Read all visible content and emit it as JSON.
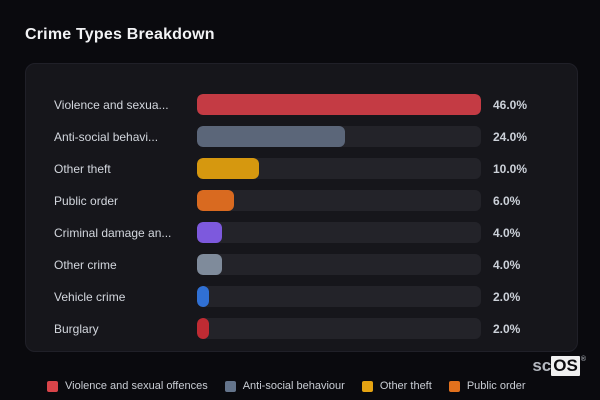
{
  "page_title": "Crime Types Breakdown",
  "chart_data": {
    "type": "bar",
    "orientation": "horizontal",
    "title": "Crime Types Breakdown",
    "value_unit": "%",
    "axis_max_scaling": "bars scaled relative to max value (46%)",
    "max_value": 46,
    "grid": false,
    "legend_position": "bottom",
    "categories": [
      "Violence and sexua...",
      "Anti-social behavi...",
      "Other theft",
      "Public order",
      "Criminal damage an...",
      "Other crime",
      "Vehicle crime",
      "Burglary"
    ],
    "values": [
      46.0,
      24.0,
      10.0,
      6.0,
      4.0,
      4.0,
      2.0,
      2.0
    ],
    "rows": [
      {
        "label": "Violence and sexua...",
        "value": 46.0,
        "value_label": "46.0%",
        "color": "#c43b44"
      },
      {
        "label": "Anti-social behavi...",
        "value": 24.0,
        "value_label": "24.0%",
        "color": "#5b6679"
      },
      {
        "label": "Other theft",
        "value": 10.0,
        "value_label": "10.0%",
        "color": "#d6980f"
      },
      {
        "label": "Public order",
        "value": 6.0,
        "value_label": "6.0%",
        "color": "#d96a20"
      },
      {
        "label": "Criminal damage an...",
        "value": 4.0,
        "value_label": "4.0%",
        "color": "#7d59dd"
      },
      {
        "label": "Other crime",
        "value": 4.0,
        "value_label": "4.0%",
        "color": "#7f8b9b"
      },
      {
        "label": "Vehicle crime",
        "value": 2.0,
        "value_label": "2.0%",
        "color": "#3070d4"
      },
      {
        "label": "Burglary",
        "value": 2.0,
        "value_label": "2.0%",
        "color": "#bf2b33"
      }
    ],
    "legend": [
      {
        "label": "Violence and sexual offences",
        "color": "#d94449"
      },
      {
        "label": "Anti-social behaviour",
        "color": "#64748b"
      },
      {
        "label": "Other theft",
        "color": "#e5a312"
      },
      {
        "label": "Public order",
        "color": "#e2711d"
      }
    ],
    "colors": {
      "page_background": "#0a0a0e",
      "card_background": "#16161b",
      "track_background": "#232329",
      "label_text": "#d3d7de",
      "value_text": "#ccd1d9"
    }
  },
  "brand": {
    "prefix": "sc",
    "suffix": "OS",
    "registered_mark": "®"
  }
}
